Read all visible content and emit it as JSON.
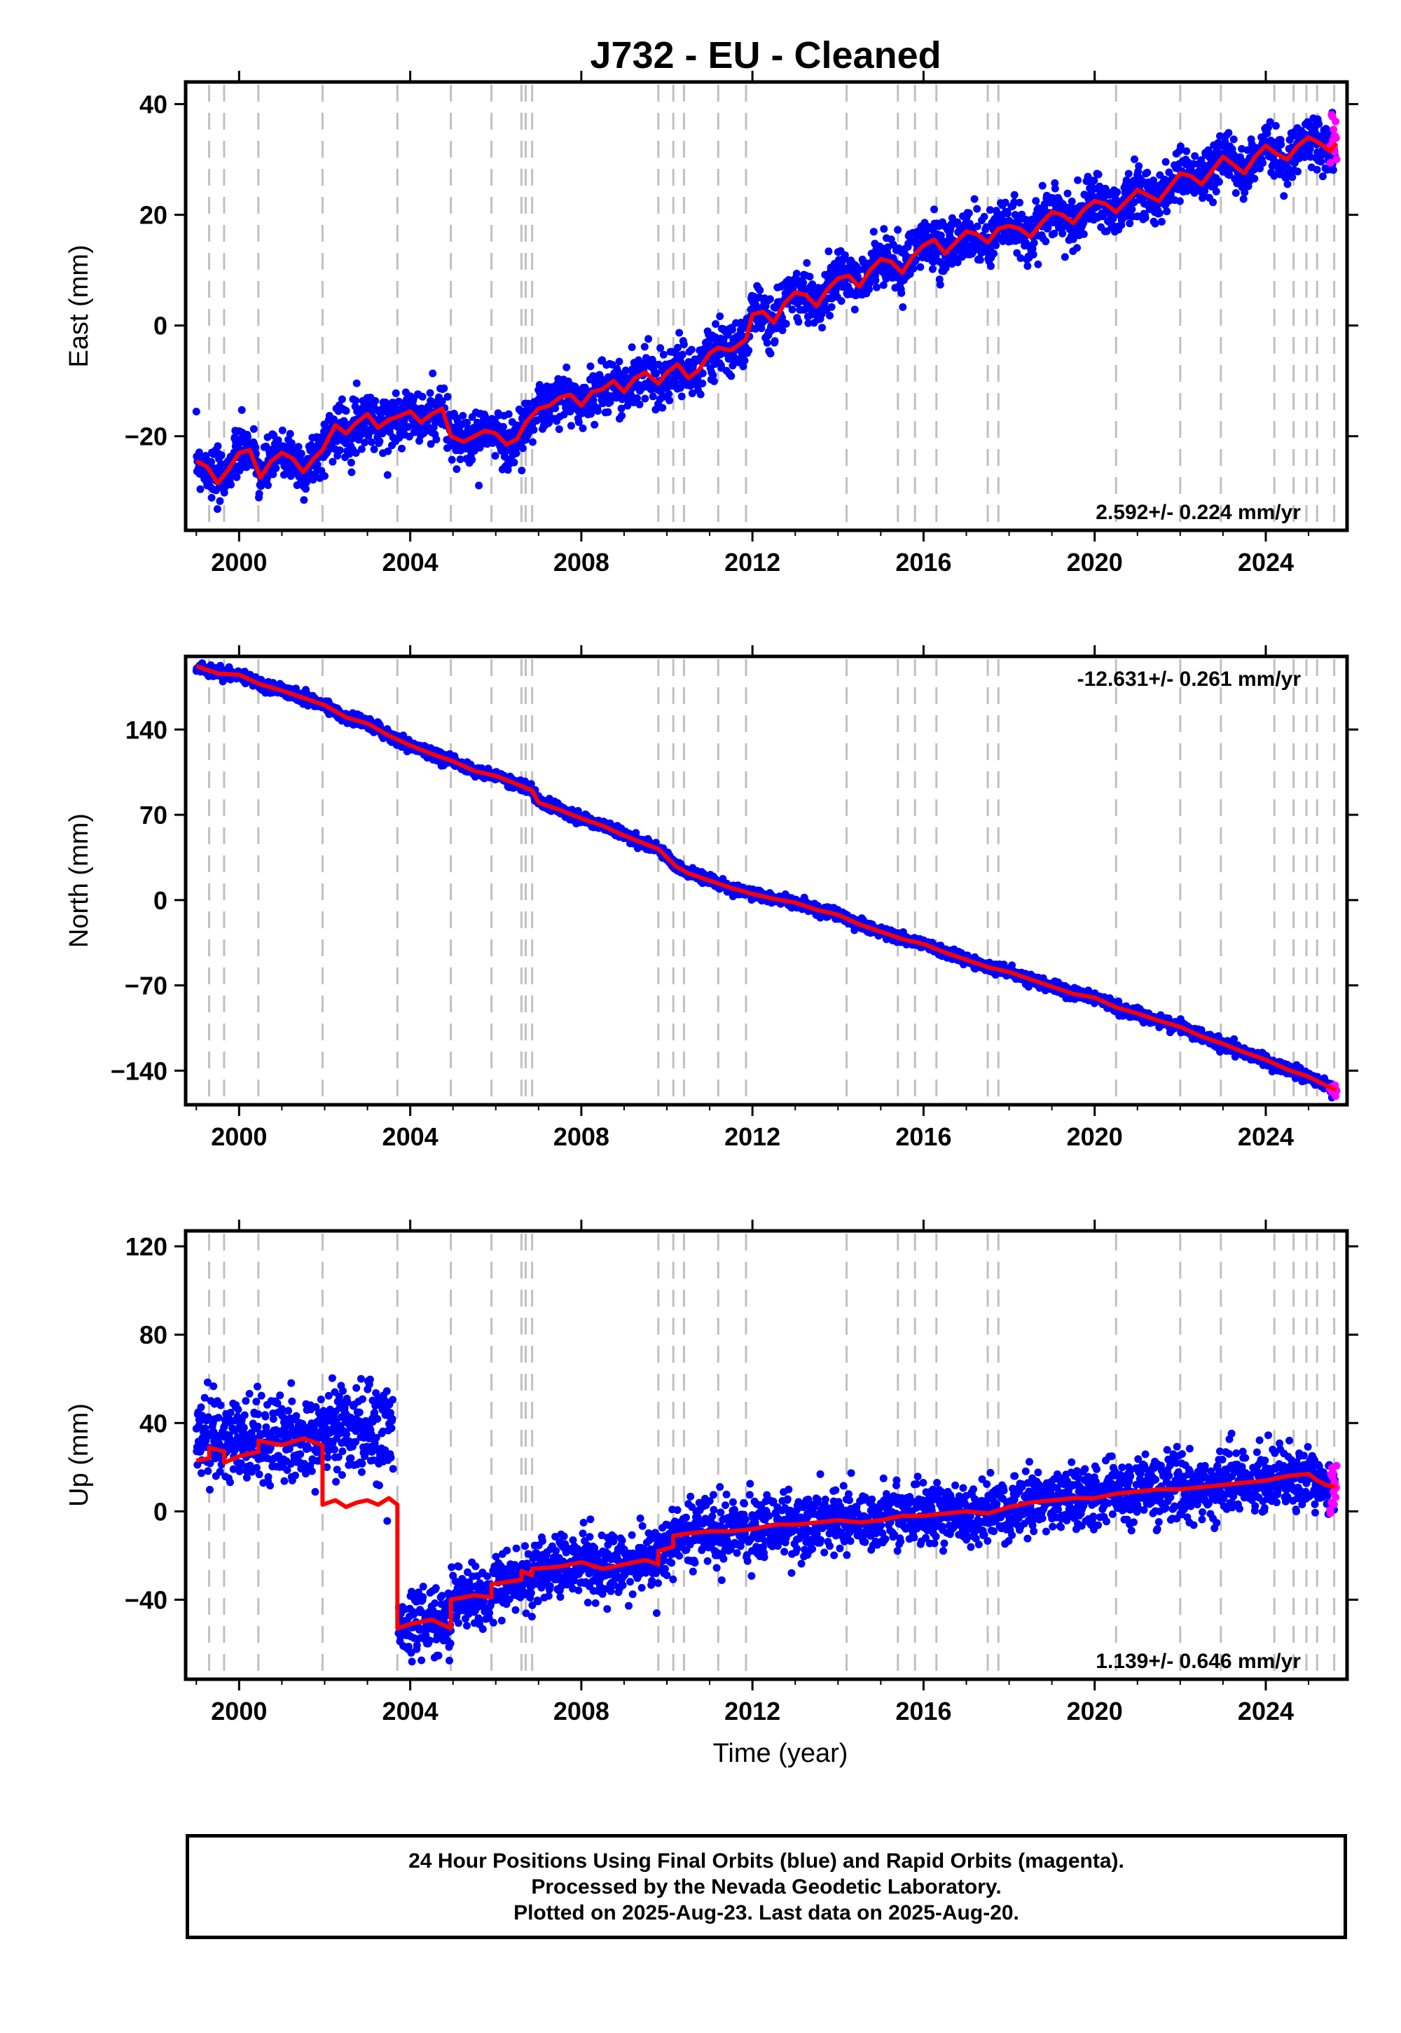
{
  "title": "J732  - EU - Cleaned",
  "footer": {
    "line1": "24 Hour Positions Using Final Orbits (blue) and Rapid Orbits (magenta).",
    "line2": "Processed by the Nevada Geodetic Laboratory.",
    "line3": "Plotted on 2025-Aug-23. Last data on 2025-Aug-20."
  },
  "colors": {
    "final": "#0000ff",
    "rapid": "#ff00ff",
    "model": "#ff0000",
    "event_lines": "#c0c0c0",
    "axes": "#000000"
  },
  "chart_data": [
    {
      "type": "scatter",
      "panel": "east",
      "ylabel": "East (mm)",
      "xlabel": "",
      "xlim": [
        1998.75,
        2025.9
      ],
      "ylim": [
        -37,
        44
      ],
      "xticks": [
        2000,
        2004,
        2008,
        2012,
        2016,
        2020,
        2024
      ],
      "yticks": [
        -20,
        0,
        20,
        40
      ],
      "rate_label": "2.592+/- 0.224 mm/yr",
      "rate_position": "bottom-right",
      "grid": false,
      "event_lines": [
        1999.3,
        1999.65,
        2000.45,
        2001.95,
        2003.7,
        2004.95,
        2005.9,
        2006.6,
        2006.7,
        2006.85,
        2009.8,
        2010.15,
        2010.4,
        2011.2,
        2011.85,
        2014.2,
        2015.4,
        2015.8,
        2016.3,
        2017.5,
        2017.75,
        2020.5,
        2022.0,
        2022.95,
        2024.2,
        2024.65,
        2024.95,
        2025.2,
        2025.6
      ],
      "series": [
        {
          "kind": "model",
          "x": [
            1999.0,
            1999.25,
            1999.5,
            1999.75,
            2000.0,
            2000.25,
            2000.5,
            2000.75,
            2001.0,
            2001.25,
            2001.5,
            2001.75,
            2001.95,
            2002.25,
            2002.5,
            2002.75,
            2003.0,
            2003.25,
            2003.5,
            2003.7,
            2004.0,
            2004.25,
            2004.5,
            2004.75,
            2004.95,
            2005.25,
            2005.5,
            2005.75,
            2006.0,
            2006.25,
            2006.5,
            2006.7,
            2007.0,
            2007.25,
            2007.5,
            2007.75,
            2008.0,
            2008.25,
            2008.5,
            2008.75,
            2009.0,
            2009.25,
            2009.5,
            2009.8,
            2010.0,
            2010.25,
            2010.5,
            2010.75,
            2011.0,
            2011.2,
            2011.5,
            2011.85,
            2012.0,
            2012.25,
            2012.5,
            2012.75,
            2013.0,
            2013.25,
            2013.5,
            2013.75,
            2014.0,
            2014.25,
            2014.5,
            2014.75,
            2015.0,
            2015.25,
            2015.5,
            2015.75,
            2016.0,
            2016.25,
            2016.5,
            2016.75,
            2017.0,
            2017.25,
            2017.5,
            2017.75,
            2018.0,
            2018.25,
            2018.5,
            2018.75,
            2019.0,
            2019.25,
            2019.5,
            2019.75,
            2020.0,
            2020.25,
            2020.5,
            2020.75,
            2021.0,
            2021.25,
            2021.5,
            2021.75,
            2022.0,
            2022.25,
            2022.5,
            2022.75,
            2023.0,
            2023.25,
            2023.5,
            2023.75,
            2024.0,
            2024.25,
            2024.5,
            2024.75,
            2025.0,
            2025.25,
            2025.5,
            2025.65
          ],
          "y": [
            -24.5,
            -25.5,
            -28.5,
            -26.0,
            -23.0,
            -22.5,
            -27.5,
            -24.5,
            -23.0,
            -24.0,
            -26.5,
            -24.0,
            -22.5,
            -18.0,
            -19.5,
            -17.5,
            -16.0,
            -18.5,
            -17.0,
            -16.5,
            -15.5,
            -17.5,
            -16.0,
            -15.0,
            -20.0,
            -21.0,
            -20.0,
            -19.0,
            -19.5,
            -21.5,
            -20.5,
            -17.5,
            -15.0,
            -14.5,
            -13.0,
            -12.5,
            -14.5,
            -12.0,
            -11.5,
            -10.0,
            -12.0,
            -9.5,
            -8.5,
            -10.5,
            -8.5,
            -7.0,
            -9.5,
            -8.0,
            -5.0,
            -4.0,
            -4.5,
            -2.5,
            2.0,
            2.5,
            0.5,
            4.0,
            6.0,
            5.5,
            3.5,
            6.5,
            8.5,
            9.0,
            7.0,
            10.0,
            12.0,
            11.5,
            9.5,
            12.5,
            14.5,
            15.5,
            13.0,
            15.0,
            17.0,
            16.5,
            15.0,
            17.5,
            18.0,
            17.5,
            16.0,
            18.5,
            20.5,
            20.0,
            18.5,
            21.0,
            22.5,
            22.0,
            20.5,
            22.5,
            24.5,
            23.5,
            22.5,
            25.0,
            27.5,
            27.0,
            25.5,
            28.0,
            30.5,
            29.0,
            27.5,
            30.5,
            32.5,
            31.0,
            30.0,
            32.5,
            34.0,
            33.0,
            31.5,
            33.0
          ]
        }
      ]
    },
    {
      "type": "scatter",
      "panel": "north",
      "ylabel": "North (mm)",
      "xlabel": "",
      "xlim": [
        1998.75,
        2025.9
      ],
      "ylim": [
        -168,
        200
      ],
      "xticks": [
        2000,
        2004,
        2008,
        2012,
        2016,
        2020,
        2024
      ],
      "yticks": [
        -140,
        -70,
        0,
        70,
        140
      ],
      "rate_label": "-12.631+/- 0.261 mm/yr",
      "rate_position": "top-right",
      "grid": false,
      "event_lines": [
        1999.3,
        1999.65,
        2000.45,
        2001.95,
        2003.7,
        2004.95,
        2005.9,
        2006.6,
        2006.7,
        2006.85,
        2009.8,
        2010.15,
        2010.4,
        2011.2,
        2011.85,
        2014.2,
        2015.4,
        2015.8,
        2016.3,
        2017.5,
        2017.75,
        2020.5,
        2022.0,
        2022.95,
        2024.2,
        2024.65,
        2024.95,
        2025.2,
        2025.6
      ],
      "series": [
        {
          "kind": "model",
          "x": [
            1999.0,
            1999.5,
            2000.0,
            2000.5,
            2001.0,
            2001.5,
            2002.0,
            2002.5,
            2003.0,
            2003.5,
            2004.0,
            2004.5,
            2005.0,
            2005.5,
            2006.0,
            2006.5,
            2006.85,
            2007.0,
            2007.5,
            2008.0,
            2008.5,
            2009.0,
            2009.5,
            2009.8,
            2010.2,
            2010.5,
            2011.0,
            2011.5,
            2012.0,
            2012.5,
            2013.0,
            2013.5,
            2014.0,
            2014.5,
            2015.0,
            2015.5,
            2016.0,
            2016.5,
            2017.0,
            2017.5,
            2018.0,
            2018.5,
            2019.0,
            2019.5,
            2020.0,
            2020.5,
            2021.0,
            2021.5,
            2022.0,
            2022.5,
            2023.0,
            2023.5,
            2024.0,
            2024.5,
            2025.0,
            2025.4,
            2025.65
          ],
          "y": [
            192,
            186,
            185,
            177,
            172,
            166,
            160,
            150,
            145,
            135,
            127,
            120,
            114,
            106,
            102,
            95,
            90,
            80,
            74,
            67,
            61,
            53,
            46,
            42,
            28,
            22,
            16,
            10,
            5,
            1,
            -2,
            -8,
            -12,
            -20,
            -26,
            -32,
            -36,
            -43,
            -49,
            -55,
            -59,
            -65,
            -71,
            -77,
            -80,
            -88,
            -93,
            -99,
            -104,
            -112,
            -118,
            -125,
            -131,
            -139,
            -145,
            -152,
            -156
          ]
        }
      ]
    },
    {
      "type": "scatter",
      "panel": "up",
      "ylabel": "Up (mm)",
      "xlabel": "Time (year)",
      "xlim": [
        1998.75,
        2025.9
      ],
      "ylim": [
        -76,
        127
      ],
      "xticks": [
        2000,
        2004,
        2008,
        2012,
        2016,
        2020,
        2024
      ],
      "yticks": [
        -40,
        0,
        40,
        80,
        120
      ],
      "rate_label": "1.139+/- 0.646 mm/yr",
      "rate_position": "bottom-right",
      "grid": false,
      "event_lines": [
        1999.3,
        1999.65,
        2000.45,
        2001.95,
        2003.7,
        2004.95,
        2005.9,
        2006.6,
        2006.7,
        2006.85,
        2009.8,
        2010.15,
        2010.4,
        2011.2,
        2011.85,
        2014.2,
        2015.4,
        2015.8,
        2016.3,
        2017.5,
        2017.75,
        2020.5,
        2022.0,
        2022.95,
        2024.2,
        2024.65,
        2024.95,
        2025.2,
        2025.6
      ],
      "series": [
        {
          "kind": "model",
          "x": [
            1999.0,
            1999.3,
            1999.3,
            1999.65,
            1999.65,
            2000.0,
            2000.45,
            2000.45,
            2001.0,
            2001.5,
            2001.95,
            2001.95,
            2002.25,
            2002.5,
            2002.75,
            2003.0,
            2003.25,
            2003.5,
            2003.7,
            2003.7,
            2004.0,
            2004.5,
            2004.95,
            2004.95,
            2005.5,
            2005.9,
            2005.9,
            2006.6,
            2006.6,
            2006.85,
            2006.85,
            2007.5,
            2008.0,
            2008.5,
            2009.0,
            2009.5,
            2009.8,
            2009.8,
            2010.15,
            2010.15,
            2010.5,
            2011.0,
            2011.5,
            2012.0,
            2012.5,
            2013.0,
            2013.5,
            2014.0,
            2014.5,
            2015.0,
            2015.5,
            2016.0,
            2016.5,
            2017.0,
            2017.5,
            2018.0,
            2018.5,
            2019.0,
            2019.5,
            2020.0,
            2020.5,
            2021.0,
            2021.5,
            2022.0,
            2022.5,
            2023.0,
            2023.5,
            2024.0,
            2024.5,
            2025.0,
            2025.2,
            2025.4,
            2025.65
          ],
          "y": [
            23,
            24,
            29,
            27,
            22,
            25,
            27,
            32,
            30,
            33,
            30,
            3,
            5,
            2,
            4,
            5,
            3,
            6,
            3,
            -53,
            -51,
            -49,
            -53,
            -40,
            -38,
            -39,
            -33,
            -31,
            -27,
            -29,
            -26,
            -25,
            -23,
            -26,
            -24,
            -22,
            -24,
            -18,
            -16,
            -11,
            -10,
            -9,
            -9,
            -8,
            -6,
            -6,
            -5,
            -4,
            -5,
            -4,
            -2,
            -2,
            -1,
            0,
            -1,
            2,
            4,
            5,
            6,
            6,
            8,
            9,
            10,
            10,
            11,
            12,
            13,
            14,
            16,
            17,
            14,
            12,
            11
          ]
        }
      ]
    }
  ]
}
